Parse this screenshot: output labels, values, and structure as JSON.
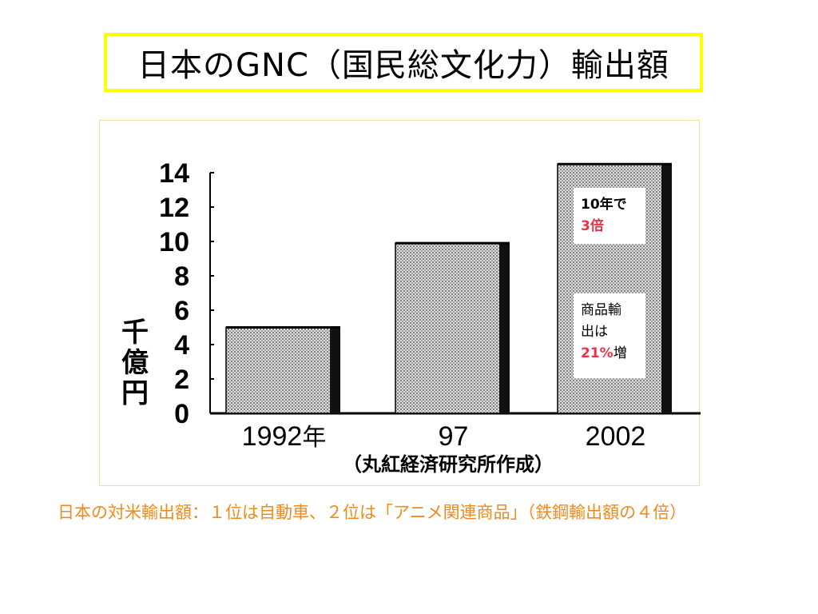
{
  "title": "日本のGNC（国民総文化力）輸出額",
  "chart_data": {
    "type": "bar",
    "categories": [
      "1992",
      "97",
      "2002"
    ],
    "category_suffixes": [
      "年",
      "",
      ""
    ],
    "values": [
      5,
      9.9,
      14.5
    ],
    "ylim": [
      0,
      14
    ],
    "yticks": [
      "0",
      "2",
      "4",
      "6",
      "8",
      "10",
      "12",
      "14"
    ],
    "ylabel": "千億円",
    "source": "（丸紅経済研究所作成）",
    "bar_pattern": "dotted",
    "grid": false,
    "annotations": [
      {
        "lines": [
          [
            {
              "text": "10年で",
              "color": "#000000"
            }
          ],
          [
            {
              "text": "3倍",
              "color": "#e8334a"
            }
          ]
        ]
      },
      {
        "lines": [
          [
            {
              "text": "商品輸",
              "color": "#000000",
              "bold": false
            }
          ],
          [
            {
              "text": "出は",
              "color": "#000000",
              "bold": false
            }
          ],
          [
            {
              "text": "21%",
              "color": "#e8334a",
              "bold": true
            },
            {
              "text": "増",
              "color": "#000000",
              "bold": false
            }
          ]
        ]
      }
    ]
  },
  "caption": "日本の対米輸出額：１位は自動車、２位は「アニメ関連商品」（鉄鋼輸出額の４倍）",
  "colors": {
    "title_border": "#ffff00",
    "chart_border": "#f5dca0",
    "caption": "#f08a1c",
    "highlight": "#e8334a"
  }
}
